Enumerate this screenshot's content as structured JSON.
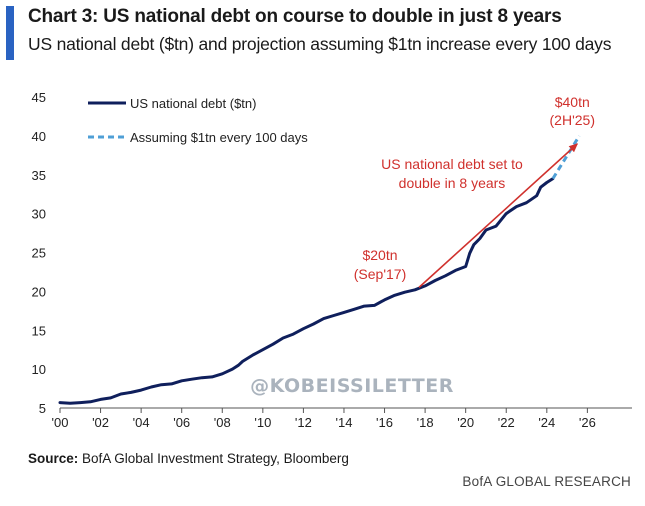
{
  "header": {
    "title": "Chart 3: US national debt on course to double in just 8 years",
    "subtitle": "US national debt ($tn) and projection assuming $1tn increase every 100 days"
  },
  "colors": {
    "accent": "#2a63c2",
    "series_main": "#0f1f5c",
    "series_projection": "#4f9fd6",
    "annotation": "#d0312d",
    "watermark": "#aab3bd"
  },
  "chart_data": {
    "type": "line",
    "title": "Chart 3: US national debt on course to double in just 8 years",
    "subtitle": "US national debt ($tn) and projection assuming $1tn increase every 100 days",
    "xlabel": "",
    "ylabel": "",
    "xlim": [
      2000,
      2028.2
    ],
    "ylim": [
      5,
      45
    ],
    "x_ticks": [
      2000,
      2002,
      2004,
      2006,
      2008,
      2010,
      2012,
      2014,
      2016,
      2018,
      2020,
      2022,
      2024,
      2026
    ],
    "x_tick_labels": [
      "'00",
      "'02",
      "'04",
      "'06",
      "'08",
      "'10",
      "'12",
      "'14",
      "'16",
      "'18",
      "'20",
      "'22",
      "'24",
      "'26"
    ],
    "y_ticks": [
      5,
      10,
      15,
      20,
      25,
      30,
      35,
      40,
      45
    ],
    "y_tick_labels": [
      "5",
      "10",
      "15",
      "20",
      "25",
      "30",
      "35",
      "40",
      "45"
    ],
    "grid": false,
    "legend_position": "top-left",
    "series": [
      {
        "name": "US national debt ($tn)",
        "style": "solid",
        "x": [
          2000.0,
          2000.5,
          2001.0,
          2001.5,
          2002.0,
          2002.5,
          2003.0,
          2003.5,
          2004.0,
          2004.5,
          2005.0,
          2005.5,
          2006.0,
          2006.5,
          2007.0,
          2007.5,
          2008.0,
          2008.5,
          2008.8,
          2009.0,
          2009.5,
          2010.0,
          2010.5,
          2011.0,
          2011.5,
          2012.0,
          2012.5,
          2013.0,
          2013.5,
          2014.0,
          2014.5,
          2015.0,
          2015.5,
          2016.0,
          2016.5,
          2017.0,
          2017.5,
          2018.0,
          2018.5,
          2019.0,
          2019.5,
          2020.0,
          2020.2,
          2020.4,
          2020.7,
          2021.0,
          2021.5,
          2022.0,
          2022.5,
          2023.0,
          2023.5,
          2023.7,
          2024.0,
          2024.3
        ],
        "y": [
          5.7,
          5.6,
          5.7,
          5.8,
          6.1,
          6.3,
          6.8,
          7.0,
          7.3,
          7.7,
          8.0,
          8.1,
          8.5,
          8.7,
          8.9,
          9.0,
          9.4,
          10.0,
          10.5,
          11.0,
          11.8,
          12.5,
          13.2,
          14.0,
          14.5,
          15.2,
          15.8,
          16.5,
          16.9,
          17.3,
          17.7,
          18.1,
          18.2,
          18.9,
          19.5,
          19.9,
          20.2,
          20.7,
          21.4,
          22.0,
          22.7,
          23.2,
          24.9,
          26.0,
          26.8,
          27.9,
          28.4,
          30.0,
          30.9,
          31.4,
          32.3,
          33.4,
          34.0,
          34.5
        ]
      },
      {
        "name": "Assuming $1tn every 100 days",
        "style": "dashed",
        "x": [
          2024.3,
          2025.6
        ],
        "y": [
          34.5,
          40.0
        ]
      }
    ],
    "annotations": [
      {
        "text_line1": "$40tn",
        "text_line2": "(2H'25)",
        "x": 2025.6,
        "y": 40.0
      },
      {
        "text_line1": "$20tn",
        "text_line2": "(Sep'17)",
        "x": 2017.7,
        "y": 20.0
      },
      {
        "text_line1": "US national debt set to",
        "text_line2": "double in 8 years",
        "arrow_from": [
          2017.7,
          20.0
        ],
        "arrow_to": [
          2025.6,
          40.0
        ]
      }
    ],
    "watermark": "@KOBEISSILETTER"
  },
  "footer": {
    "source_label": "Source:",
    "source_text": " BofA Global Investment Strategy, Bloomberg",
    "branding": "BofA GLOBAL RESEARCH"
  }
}
